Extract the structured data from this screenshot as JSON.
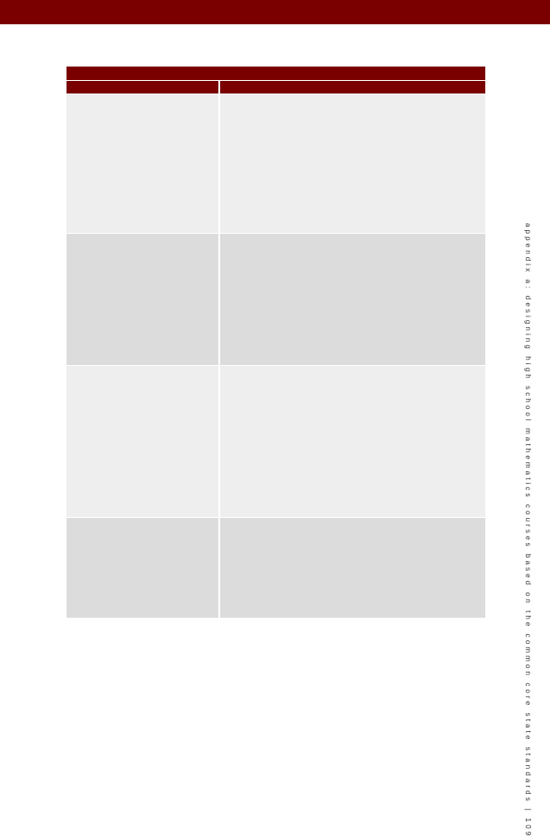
{
  "sidebar": {
    "text": "appendix a: designing high school mathematics courses based on the common core state standards | 109"
  }
}
